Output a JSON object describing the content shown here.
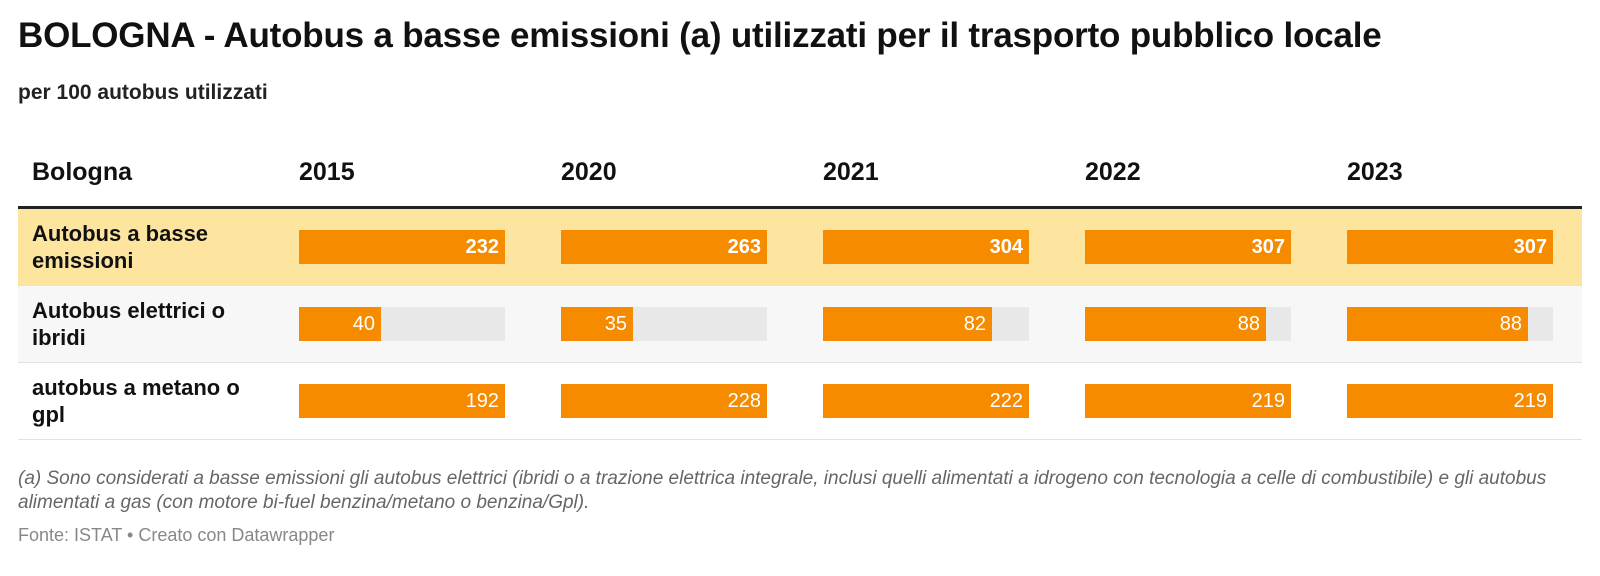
{
  "title": "BOLOGNA - Autobus a basse emissioni (a) utilizzati per il trasporto pubblico locale",
  "subtitle": "per 100 autobus utilizzati",
  "row_header": "Bologna",
  "note": "(a) Sono considerati a basse emissioni gli autobus elettrici (ibridi o a trazione elettrica integrale, inclusi quelli alimentati a idrogeno con tecnologia a celle di combustibile) e gli autobus alimentati a gas (con motore bi-fuel benzina/metano o benzina/Gpl).",
  "source": "Fonte: ISTAT • Creato con Datawrapper",
  "colors": {
    "bar": "#f68b00",
    "track": "#e8e8e8",
    "highlight": "#fde5a0"
  },
  "chart_data": {
    "type": "table",
    "columns": [
      "2015",
      "2020",
      "2021",
      "2022",
      "2023"
    ],
    "rows": [
      {
        "label": "Autobus a basse emissioni",
        "values": [
          232,
          263,
          304,
          307,
          307
        ],
        "highlight": true
      },
      {
        "label": "Autobus elettrici o ibridi",
        "values": [
          40,
          35,
          82,
          88,
          88
        ]
      },
      {
        "label": "autobus a metano o gpl",
        "values": [
          192,
          228,
          222,
          219,
          219
        ]
      }
    ]
  }
}
